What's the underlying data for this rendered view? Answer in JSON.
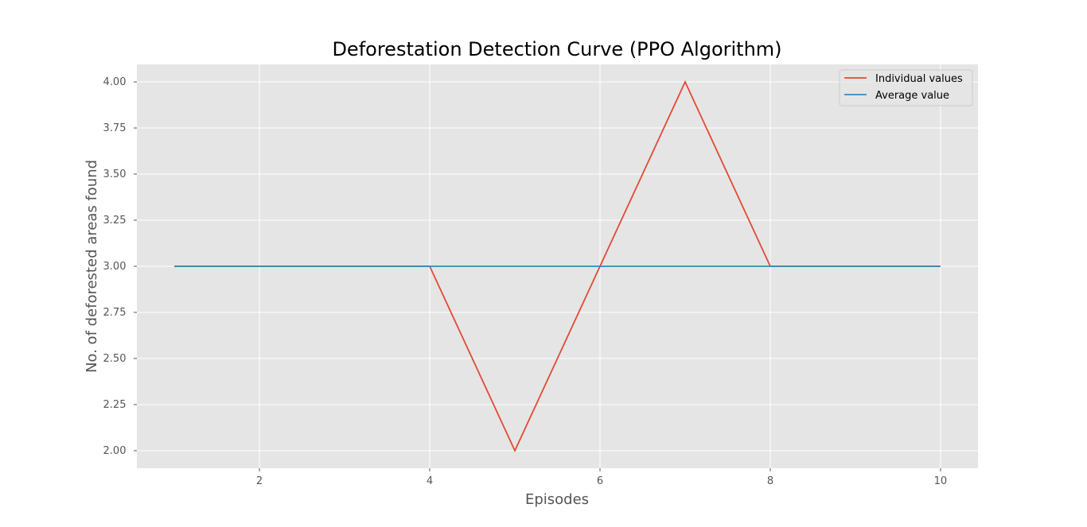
{
  "chart_data": {
    "type": "line",
    "title": "Deforestation Detection Curve (PPO Algorithm)",
    "xlabel": "Episodes",
    "ylabel": "No. of deforested areas found",
    "x": [
      1,
      2,
      3,
      4,
      5,
      6,
      7,
      8,
      9,
      10
    ],
    "xlim": [
      0.56,
      10.44
    ],
    "ylim": [
      1.905,
      4.095
    ],
    "xticks": [
      2,
      4,
      6,
      8,
      10
    ],
    "yticks": [
      2.0,
      2.25,
      2.5,
      2.75,
      3.0,
      3.25,
      3.5,
      3.75,
      4.0
    ],
    "yticks_text": [
      "2.00",
      "2.25",
      "2.50",
      "2.75",
      "3.00",
      "3.25",
      "3.50",
      "3.75",
      "4.00"
    ],
    "xticks_text": [
      "2",
      "4",
      "6",
      "8",
      "10"
    ],
    "grid": true,
    "legend_position": "top-right",
    "series": [
      {
        "name": "Individual values",
        "color": "#E24A33",
        "values": [
          3,
          3,
          3,
          3,
          2,
          3,
          4,
          3,
          3,
          3
        ]
      },
      {
        "name": "Average value",
        "color": "#348ABD",
        "values": [
          3,
          3,
          3,
          3,
          3,
          3,
          3,
          3,
          3,
          3
        ]
      }
    ],
    "style": {
      "plot_bg": "#E5E5E5",
      "grid_color": "#FFFFFF"
    }
  }
}
